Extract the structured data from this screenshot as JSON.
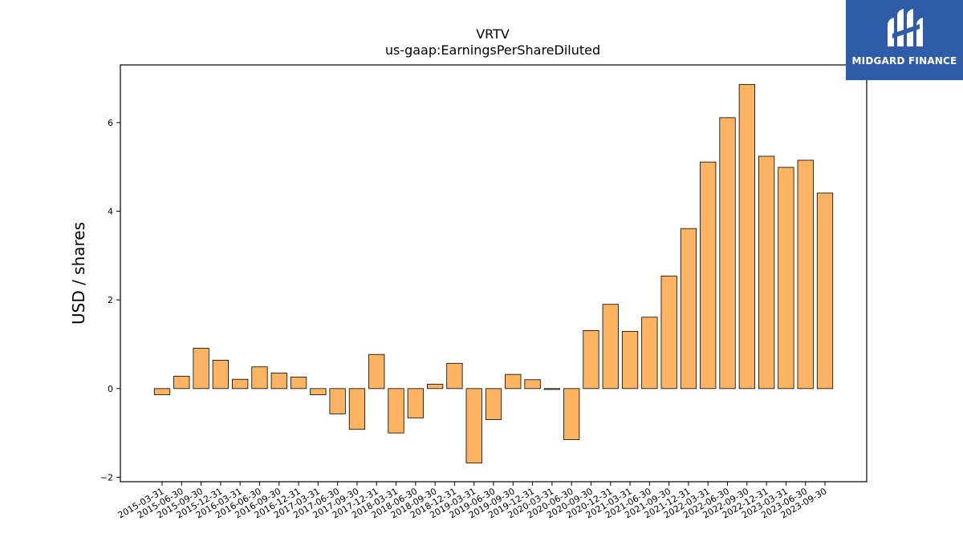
{
  "logo": {
    "text": "MIDGARD FINANCE",
    "background": "#2f5ca8"
  },
  "chart_data": {
    "type": "bar",
    "title": "VRTV",
    "subtitle": "us-gaap:EarningsPerShareDiluted",
    "xlabel": "",
    "ylabel": "USD / shares",
    "ylim": [
      -2.1,
      7.3
    ],
    "yticks": [
      -2,
      0,
      2,
      4,
      6
    ],
    "ytick_labels": [
      "−2",
      "0",
      "2",
      "4",
      "6"
    ],
    "grid": false,
    "bar_color": "#fdb462",
    "categories": [
      "2015-03-31",
      "2015-06-30",
      "2015-09-30",
      "2015-12-31",
      "2016-03-31",
      "2016-06-30",
      "2016-09-30",
      "2016-12-31",
      "2017-03-31",
      "2017-06-30",
      "2017-09-30",
      "2017-12-31",
      "2018-03-31",
      "2018-06-30",
      "2018-09-30",
      "2018-12-31",
      "2019-03-31",
      "2019-06-30",
      "2019-09-30",
      "2019-12-31",
      "2020-03-31",
      "2020-06-30",
      "2020-09-30",
      "2020-12-31",
      "2021-03-31",
      "2021-06-30",
      "2021-09-30",
      "2021-12-31",
      "2022-03-31",
      "2022-06-30",
      "2022-09-30",
      "2022-12-31",
      "2023-03-31",
      "2023-06-30",
      "2023-09-30"
    ],
    "values": [
      -0.14,
      0.28,
      0.91,
      0.64,
      0.21,
      0.49,
      0.35,
      0.26,
      -0.14,
      -0.57,
      -0.92,
      0.77,
      -1.0,
      -0.66,
      0.1,
      0.57,
      -1.68,
      -0.7,
      0.32,
      0.2,
      -0.02,
      -1.15,
      1.31,
      1.9,
      1.29,
      1.61,
      2.54,
      3.61,
      5.11,
      6.11,
      6.86,
      5.24,
      4.99,
      5.15,
      4.41
    ]
  }
}
